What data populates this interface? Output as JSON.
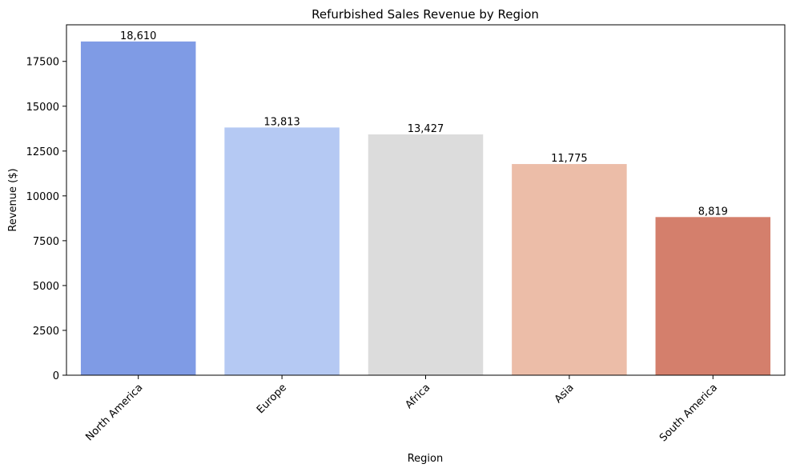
{
  "chart_data": {
    "type": "bar",
    "title": "Refurbished Sales Revenue by Region",
    "xlabel": "Region",
    "ylabel": "Revenue ($)",
    "categories": [
      "North America",
      "Europe",
      "Africa",
      "Asia",
      "South America"
    ],
    "values": [
      18610,
      13813,
      13427,
      11775,
      8819
    ],
    "value_labels": [
      "18,610",
      "13,813",
      "13,427",
      "11,775",
      "8,819"
    ],
    "colors": [
      "#7f9be5",
      "#b5c9f3",
      "#dcdcdc",
      "#ecbda8",
      "#d47f6c"
    ],
    "ylim": [
      0,
      19540
    ],
    "yticks": [
      0,
      2500,
      5000,
      7500,
      10000,
      12500,
      15000,
      17500
    ],
    "ytick_labels": [
      "0",
      "2500",
      "5000",
      "7500",
      "10000",
      "12500",
      "15000",
      "17500"
    ],
    "xtick_rotation": 45,
    "grid": false,
    "legend": "none"
  }
}
